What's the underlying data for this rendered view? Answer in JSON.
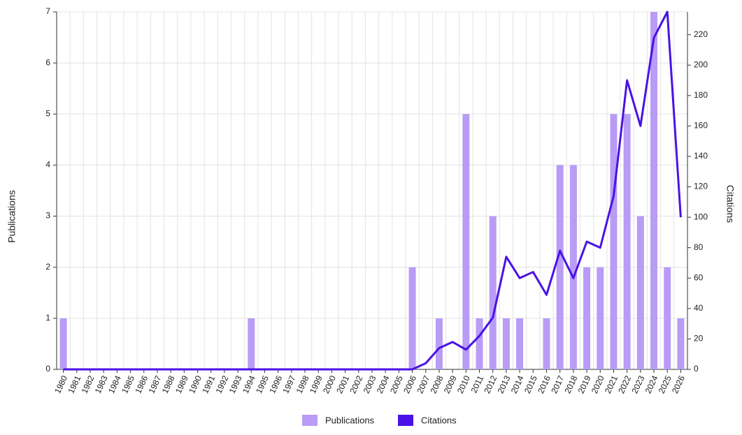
{
  "chart_data": {
    "type": "combo",
    "y_label": "Publications",
    "y2_label": "Citations",
    "categories": [
      "1980",
      "1981",
      "1982",
      "1983",
      "1984",
      "1985",
      "1986",
      "1987",
      "1988",
      "1989",
      "1990",
      "1991",
      "1992",
      "1993",
      "1994",
      "1995",
      "1996",
      "1997",
      "1998",
      "1999",
      "2000",
      "2001",
      "2002",
      "2003",
      "2004",
      "2005",
      "2006",
      "2007",
      "2008",
      "2009",
      "2010",
      "2011",
      "2012",
      "2013",
      "2014",
      "2015",
      "2016",
      "2017",
      "2018",
      "2019",
      "2020",
      "2021",
      "2022",
      "2023",
      "2024",
      "2025",
      "2026"
    ],
    "series": [
      {
        "name": "Publications",
        "type": "bar",
        "color": "#b89cf6",
        "values": [
          1,
          0,
          0,
          0,
          0,
          0,
          0,
          0,
          0,
          0,
          0,
          0,
          0,
          0,
          1,
          0,
          0,
          0,
          0,
          0,
          0,
          0,
          0,
          0,
          0,
          0,
          2,
          0,
          1,
          0,
          5,
          1,
          3,
          1,
          1,
          0,
          1,
          4,
          4,
          2,
          2,
          5,
          5,
          3,
          7,
          2,
          1
        ]
      },
      {
        "name": "Citations",
        "type": "line",
        "axis": "y2",
        "color": "#4a12e6",
        "values": [
          0,
          0,
          0,
          0,
          0,
          0,
          0,
          0,
          0,
          0,
          0,
          0,
          0,
          0,
          0,
          0,
          0,
          0,
          0,
          0,
          0,
          0,
          0,
          0,
          0,
          0,
          0,
          4,
          14,
          18,
          13,
          22,
          34,
          74,
          60,
          64,
          49,
          78,
          60,
          84,
          80,
          114,
          190,
          160,
          218,
          235,
          100
        ]
      }
    ],
    "ylim": [
      0,
      7
    ],
    "yticks": [
      0,
      1,
      2,
      3,
      4,
      5,
      6,
      7
    ],
    "y2lim": [
      0,
      235
    ],
    "y2ticks": [
      0,
      20,
      40,
      60,
      80,
      100,
      120,
      140,
      160,
      180,
      200,
      220
    ],
    "grid": true,
    "legend": "bottom"
  }
}
